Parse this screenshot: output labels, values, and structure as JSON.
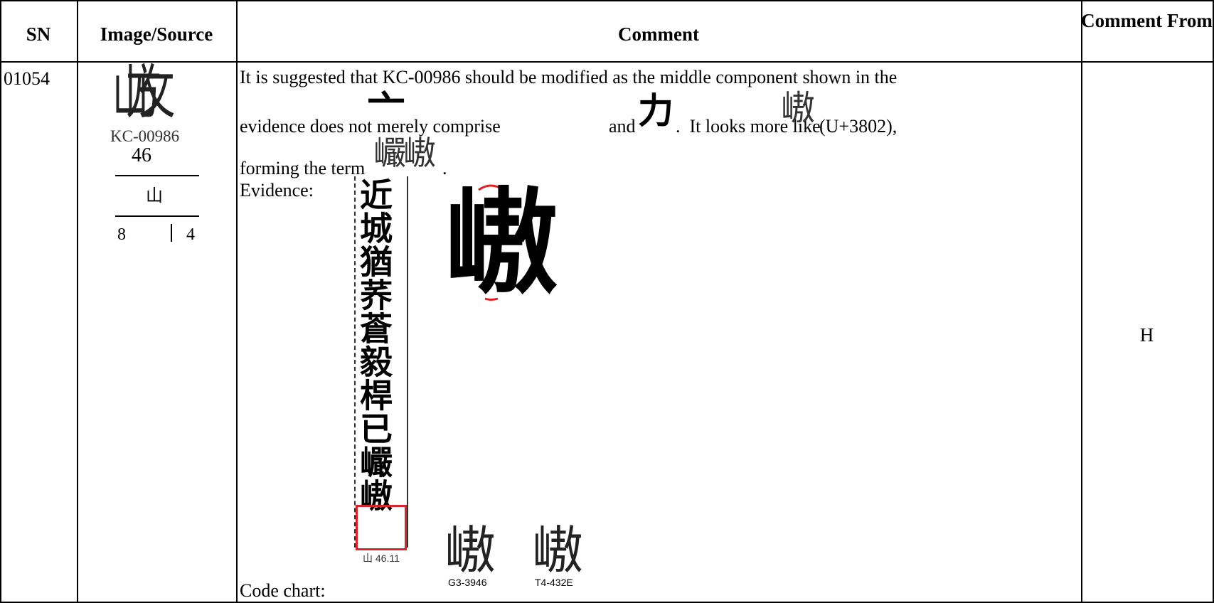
{
  "table": {
    "header": [
      "SN",
      "Image/Source",
      "Comment",
      "Comment From"
    ],
    "rows": [
      {
        "sn": "01054",
        "source": {
          "glyph": "山方攵",
          "code": "KC-00986",
          "radical_index": "46",
          "radical": "山",
          "total_strokes": "8",
          "residual_strokes": "4"
        },
        "comment": {
          "line1": "It is suggested that KC-00986 should be modified as the middle component shown in the",
          "line2_start": "evidence does not merely comprise",
          "component_1": "亠",
          "and": "and",
          "component_2": "力",
          "line2_mid": ".  It looks more like",
          "like_glyph": "㠂",
          "line2_end": "(U+3802),",
          "line3_start": "forming the term",
          "term": "巗㠂",
          "line3_end": ".",
          "evidence_label": "Evidence:",
          "evidence_text": "近城猶荞蒼毅桿已巗㠂",
          "evidence_source": "山 46.11",
          "enlarged_glyph": "㠂",
          "code_chart_label": "Code chart:",
          "code_chart": [
            {
              "glyph": "㠂",
              "source": "G3-3946"
            },
            {
              "glyph": "㠂",
              "source": "T4-432E"
            }
          ]
        },
        "comment_from": "H"
      }
    ]
  }
}
